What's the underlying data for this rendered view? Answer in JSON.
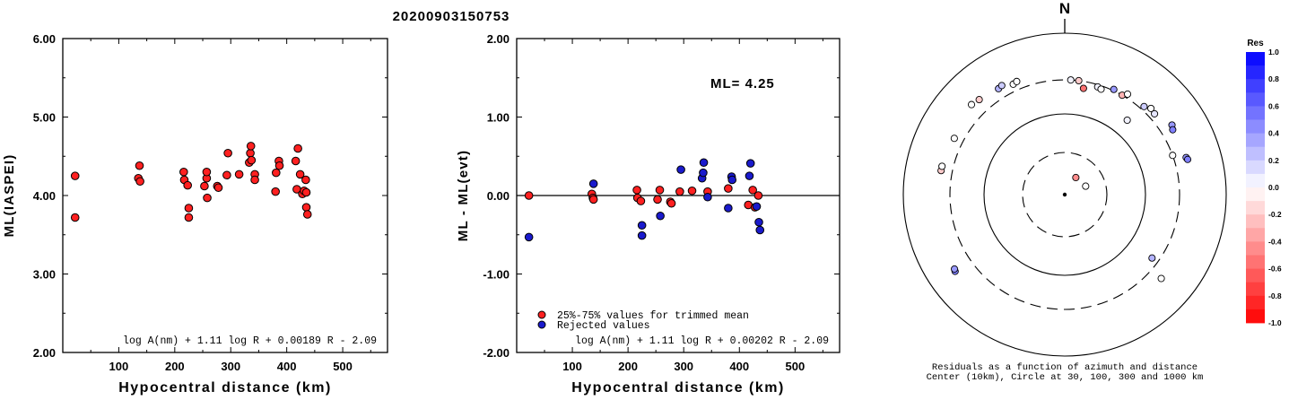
{
  "title": "20200903150753",
  "chart_data": [
    {
      "type": "scatter",
      "title": "",
      "xlabel": "Hypocentral distance (km)",
      "ylabel": "ML(IASPEI)",
      "xlim": [
        0,
        580
      ],
      "ylim": [
        2.0,
        6.0
      ],
      "x_ticks": [
        "100",
        "200",
        "300",
        "400",
        "500"
      ],
      "y_ticks": [
        "2.00",
        "3.00",
        "4.00",
        "5.00",
        "6.00"
      ],
      "formula": "log A(nm) + 1.11 log R + 0.00189 R - 2.09",
      "series": [
        {
          "color": "#ff2020",
          "points": [
            [
              22,
              4.25
            ],
            [
              22,
              3.72
            ],
            [
              135,
              4.22
            ],
            [
              137,
              4.38
            ],
            [
              138,
              4.18
            ],
            [
              216,
              4.3
            ],
            [
              217,
              4.2
            ],
            [
              223,
              4.13
            ],
            [
              225,
              3.84
            ],
            [
              225,
              3.72
            ],
            [
              253,
              4.12
            ],
            [
              257,
              4.22
            ],
            [
              257,
              4.3
            ],
            [
              258,
              3.97
            ],
            [
              276,
              4.12
            ],
            [
              278,
              4.1
            ],
            [
              293,
              4.26
            ],
            [
              295,
              4.54
            ],
            [
              315,
              4.27
            ],
            [
              333,
              4.42
            ],
            [
              335,
              4.54
            ],
            [
              336,
              4.63
            ],
            [
              337,
              4.45
            ],
            [
              343,
              4.27
            ],
            [
              343,
              4.2
            ],
            [
              380,
              4.05
            ],
            [
              381,
              4.29
            ],
            [
              386,
              4.44
            ],
            [
              387,
              4.38
            ],
            [
              416,
              4.44
            ],
            [
              418,
              4.08
            ],
            [
              420,
              4.6
            ],
            [
              424,
              4.27
            ],
            [
              428,
              4.02
            ],
            [
              431,
              4.06
            ],
            [
              434,
              4.2
            ],
            [
              435,
              4.04
            ],
            [
              435,
              3.85
            ],
            [
              437,
              3.76
            ]
          ]
        }
      ]
    },
    {
      "type": "scatter",
      "title": "",
      "xlabel": "Hypocentral distance (km)",
      "ylabel": "ML - ML(evt)",
      "xlim": [
        0,
        580
      ],
      "ylim": [
        -2.0,
        2.0
      ],
      "x_ticks": [
        "100",
        "200",
        "300",
        "400",
        "500"
      ],
      "y_ticks": [
        "-2.00",
        "-1.00",
        "0.00",
        "1.00",
        "2.00"
      ],
      "annotation": "ML= 4.25",
      "formula": "log A(nm) + 1.11 log R + 0.00202 R - 2.09",
      "legend": [
        "25%-75% values for trimmed mean",
        "Rejected values"
      ],
      "series": [
        {
          "name": "25%-75% values for trimmed mean",
          "color": "#ff2020",
          "points": [
            [
              22,
              0.0
            ],
            [
              135,
              0.02
            ],
            [
              137,
              -0.03
            ],
            [
              138,
              -0.05
            ],
            [
              216,
              0.07
            ],
            [
              217,
              -0.03
            ],
            [
              223,
              -0.07
            ],
            [
              253,
              -0.05
            ],
            [
              257,
              0.07
            ],
            [
              276,
              -0.08
            ],
            [
              278,
              -0.1
            ],
            [
              293,
              0.05
            ],
            [
              315,
              0.06
            ],
            [
              343,
              0.05
            ],
            [
              380,
              0.09
            ],
            [
              416,
              -0.12
            ],
            [
              424,
              0.07
            ],
            [
              428,
              -0.15
            ],
            [
              434,
              0.0
            ]
          ]
        },
        {
          "name": "Rejected values",
          "color": "#1a1acc",
          "points": [
            [
              22,
              -0.53
            ],
            [
              138,
              0.15
            ],
            [
              225,
              -0.38
            ],
            [
              225,
              -0.51
            ],
            [
              258,
              -0.26
            ],
            [
              295,
              0.33
            ],
            [
              333,
              0.22
            ],
            [
              335,
              0.29
            ],
            [
              336,
              0.42
            ],
            [
              343,
              -0.02
            ],
            [
              380,
              -0.16
            ],
            [
              386,
              0.24
            ],
            [
              387,
              0.2
            ],
            [
              418,
              0.25
            ],
            [
              420,
              0.41
            ],
            [
              431,
              -0.14
            ],
            [
              435,
              -0.34
            ],
            [
              437,
              -0.44
            ]
          ]
        }
      ]
    },
    {
      "type": "polar-scatter",
      "north_label": "N",
      "caption_line1": "Residuals as a function of azimuth and distance",
      "caption_line2": "Center (10km), Circle at 30, 100, 300 and 1000 km",
      "colorbar_title": "Res",
      "colorbar_ticks": [
        "1.0",
        "0.8",
        "0.6",
        "0.4",
        "0.2",
        "0.0",
        "-0.2",
        "-0.4",
        "-0.6",
        "-0.8",
        "-1.0"
      ],
      "color_range": [
        -1.0,
        1.0
      ],
      "rings_km": [
        30,
        100,
        300,
        1000
      ],
      "stations": [
        {
          "az": 33,
          "dist": 17,
          "res": -0.45
        },
        {
          "az": 68,
          "dist": 18,
          "res": 0.0
        },
        {
          "az": 3,
          "dist": 300,
          "res": 0.05
        },
        {
          "az": 7,
          "dist": 300,
          "res": -0.2
        },
        {
          "az": 10,
          "dist": 240,
          "res": -0.55
        },
        {
          "az": 17,
          "dist": 280,
          "res": 0.05
        },
        {
          "az": 19,
          "dist": 270,
          "res": 0.0
        },
        {
          "az": 25,
          "dist": 310,
          "res": 0.4
        },
        {
          "az": 30,
          "dist": 300,
          "res": -0.3
        },
        {
          "az": 32,
          "dist": 330,
          "res": 0.0
        },
        {
          "az": 40,
          "dist": 170,
          "res": 0.05
        },
        {
          "az": 42,
          "dist": 330,
          "res": 0.2
        },
        {
          "az": 45,
          "dist": 360,
          "res": 0.0
        },
        {
          "az": 48,
          "dist": 350,
          "res": 0.1
        },
        {
          "az": 57,
          "dist": 420,
          "res": 0.4
        },
        {
          "az": 59,
          "dist": 400,
          "res": 0.5
        },
        {
          "az": 70,
          "dist": 300,
          "res": 0.0
        },
        {
          "az": 73,
          "dist": 410,
          "res": 0.4
        },
        {
          "az": 74,
          "dist": 420,
          "res": 0.5
        },
        {
          "az": 126,
          "dist": 240,
          "res": 0.3
        },
        {
          "az": 131,
          "dist": 420,
          "res": 0.0
        },
        {
          "az": 235,
          "dist": 490,
          "res": 0.5
        },
        {
          "az": 236,
          "dist": 480,
          "res": 0.4
        },
        {
          "az": 281,
          "dist": 400,
          "res": -0.2
        },
        {
          "az": 283,
          "dist": 400,
          "res": 0.0
        },
        {
          "az": 297,
          "dist": 380,
          "res": 0.0
        },
        {
          "az": 314,
          "dist": 440,
          "res": 0.0
        },
        {
          "az": 318,
          "dist": 420,
          "res": -0.2
        },
        {
          "az": 328,
          "dist": 390,
          "res": 0.3
        },
        {
          "az": 330,
          "dist": 400,
          "res": 0.2
        },
        {
          "az": 335,
          "dist": 360,
          "res": 0.0
        },
        {
          "az": 337,
          "dist": 370,
          "res": 0.0
        }
      ]
    }
  ]
}
